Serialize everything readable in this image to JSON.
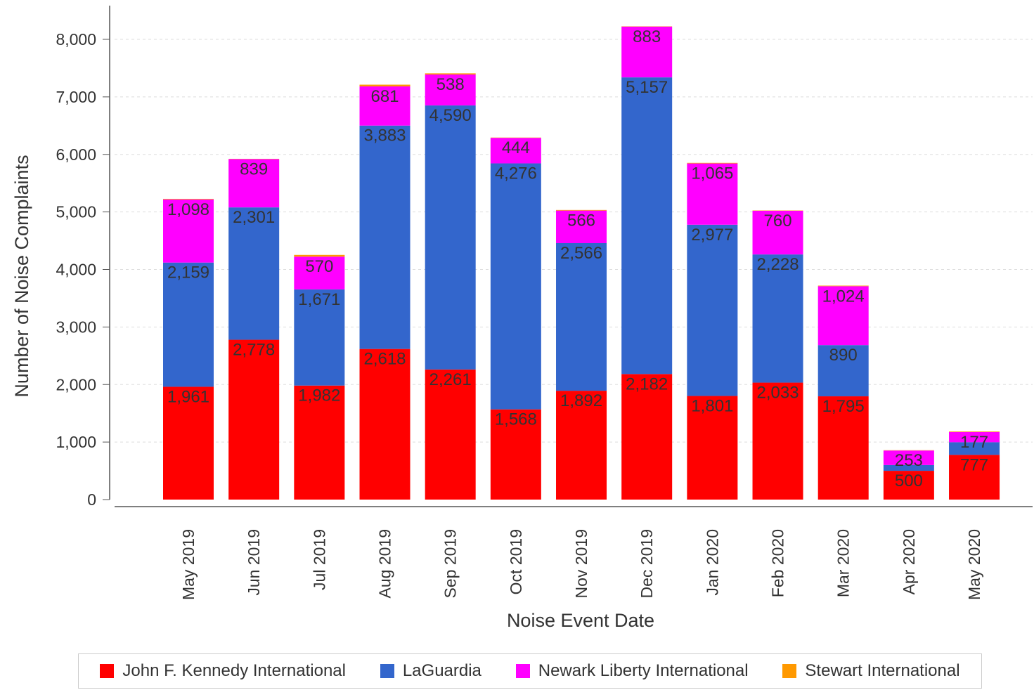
{
  "chart_data": {
    "type": "bar",
    "stacked": true,
    "xlabel": "Noise Event Date",
    "ylabel": "Number of Noise Complaints",
    "ylim": [
      0,
      8500
    ],
    "yticks": [
      0,
      1000,
      2000,
      3000,
      4000,
      5000,
      6000,
      7000,
      8000
    ],
    "ytick_labels": [
      "0",
      "1,000",
      "2,000",
      "3,000",
      "4,000",
      "5,000",
      "6,000",
      "7,000",
      "8,000"
    ],
    "grid": true,
    "legend_position": "bottom",
    "categories": [
      "May 2019",
      "Jun 2019",
      "Jul 2019",
      "Aug 2019",
      "Sep 2019",
      "Oct 2019",
      "Nov 2019",
      "Dec 2019",
      "Jan 2020",
      "Feb 2020",
      "Mar 2020",
      "Apr 2020",
      "May 2020"
    ],
    "series": [
      {
        "name": "John F. Kennedy International",
        "color": "#ff0000",
        "values": [
          1961,
          2778,
          1982,
          2618,
          2261,
          1568,
          1892,
          2182,
          1801,
          2033,
          1795,
          500,
          777
        ],
        "labels": [
          "1,961",
          "2,778",
          "1,982",
          "2,618",
          "2,261",
          "1,568",
          "1,892",
          "2,182",
          "1,801",
          "2,033",
          "1,795",
          "500",
          "777"
        ]
      },
      {
        "name": "LaGuardia",
        "color": "#3366cc",
        "values": [
          2159,
          2301,
          1671,
          3883,
          4590,
          4276,
          2566,
          5157,
          2977,
          2228,
          890,
          100,
          220
        ],
        "labels": [
          "2,159",
          "2,301",
          "1,671",
          "3,883",
          "4,590",
          "4,276",
          "2,566",
          "5,157",
          "2,977",
          "2,228",
          "890",
          "",
          ""
        ]
      },
      {
        "name": "Newark Liberty International",
        "color": "#ff00ff",
        "values": [
          1098,
          839,
          570,
          681,
          538,
          444,
          566,
          883,
          1065,
          760,
          1024,
          253,
          177
        ],
        "labels": [
          "1,098",
          "839",
          "570",
          "681",
          "538",
          "444",
          "566",
          "883",
          "1,065",
          "760",
          "1,024",
          "253",
          "177"
        ]
      },
      {
        "name": "Stewart International",
        "color": "#ff9900",
        "values": [
          10,
          5,
          30,
          30,
          20,
          5,
          10,
          5,
          10,
          5,
          10,
          5,
          10
        ],
        "labels": [
          "",
          "",
          "",
          "",
          "",
          "",
          "",
          "",
          "",
          "",
          "",
          "",
          ""
        ]
      }
    ]
  }
}
